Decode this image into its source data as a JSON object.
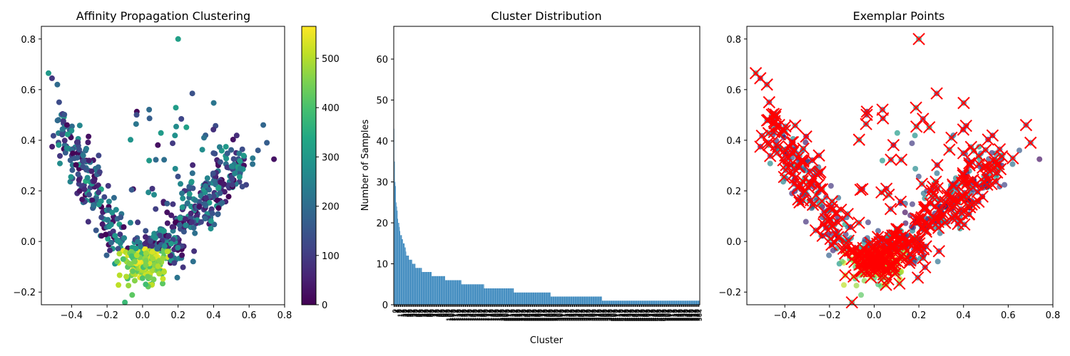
{
  "chart_data": [
    {
      "type": "scatter",
      "title": "Affinity Propagation Clustering",
      "xlabel": "",
      "ylabel": "",
      "xlim": [
        -0.57,
        0.8
      ],
      "ylim": [
        -0.25,
        0.85
      ],
      "xticks": [
        -0.4,
        -0.2,
        0.0,
        0.2,
        0.4,
        0.6,
        0.8
      ],
      "xtick_labels": [
        "−0.4",
        "−0.2",
        "0.0",
        "0.2",
        "0.4",
        "0.6",
        "0.8"
      ],
      "yticks": [
        -0.2,
        0.0,
        0.2,
        0.4,
        0.6,
        0.8
      ],
      "ytick_labels": [
        "−0.2",
        "0.0",
        "0.2",
        "0.4",
        "0.6",
        "0.8"
      ],
      "colormap": "viridis",
      "colorbar": {
        "range": [
          0,
          565
        ],
        "ticks": [
          0,
          100,
          200,
          300,
          400,
          500
        ],
        "tick_labels": [
          "0",
          "100",
          "200",
          "300",
          "400",
          "500"
        ]
      },
      "points_note": "approx. 1000 points colored by cluster label (0–565)",
      "grid": false
    },
    {
      "type": "bar",
      "title": "Cluster Distribution",
      "xlabel": "Cluster",
      "ylabel": "Number of Samples",
      "ylim": [
        0,
        68
      ],
      "yticks": [
        0,
        10,
        20,
        30,
        40,
        50,
        60
      ],
      "ytick_labels": [
        "0",
        "10",
        "20",
        "30",
        "40",
        "50",
        "60"
      ],
      "num_clusters": 566,
      "bar_color": "#1f77b4",
      "sorted_counts_top": [
        43,
        35,
        30,
        29,
        25,
        24,
        23,
        21,
        20,
        20,
        19,
        18,
        17,
        17,
        17,
        16,
        16,
        15,
        15,
        15,
        14,
        14,
        13
      ],
      "count_runs": [
        {
          "value": 12,
          "count": 5
        },
        {
          "value": 11,
          "count": 6
        },
        {
          "value": 10,
          "count": 6
        },
        {
          "value": 9,
          "count": 12
        },
        {
          "value": 8,
          "count": 18
        },
        {
          "value": 7,
          "count": 25
        },
        {
          "value": 6,
          "count": 30
        },
        {
          "value": 5,
          "count": 42
        },
        {
          "value": 4,
          "count": 55
        },
        {
          "value": 3,
          "count": 68
        },
        {
          "value": 2,
          "count": 95
        },
        {
          "value": 1,
          "count": 181
        }
      ],
      "grid": false
    },
    {
      "type": "scatter",
      "title": "Exemplar Points",
      "xlabel": "",
      "ylabel": "",
      "xlim": [
        -0.57,
        0.8
      ],
      "ylim": [
        -0.25,
        0.85
      ],
      "xticks": [
        -0.4,
        -0.2,
        0.0,
        0.2,
        0.4,
        0.6,
        0.8
      ],
      "xtick_labels": [
        "−0.4",
        "−0.2",
        "0.0",
        "0.2",
        "0.4",
        "0.6",
        "0.8"
      ],
      "yticks": [
        -0.2,
        0.0,
        0.2,
        0.4,
        0.6,
        0.8
      ],
      "ytick_labels": [
        "−0.2",
        "0.0",
        "0.2",
        "0.4",
        "0.6",
        "0.8"
      ],
      "colormap": "viridis",
      "point_alpha": 0.7,
      "exemplar_marker": "x",
      "exemplar_color": "#ff0000",
      "grid": false
    }
  ]
}
